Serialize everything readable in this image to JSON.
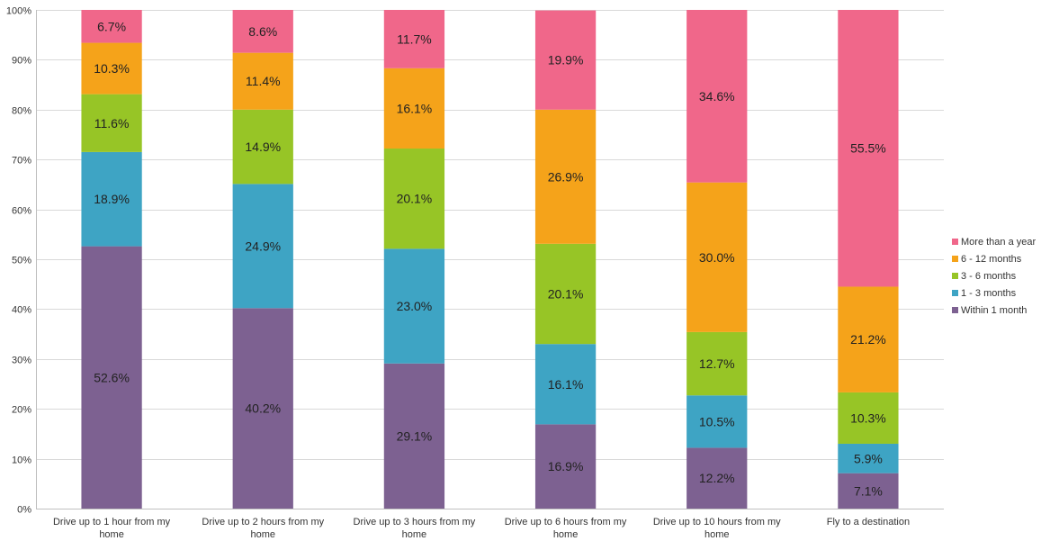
{
  "chart_data": {
    "type": "bar",
    "stacked": true,
    "percent_stacked": true,
    "title": "",
    "xlabel": "",
    "ylabel": "",
    "ylim": [
      0,
      100
    ],
    "yticks": [
      "0%",
      "10%",
      "20%",
      "30%",
      "40%",
      "50%",
      "60%",
      "70%",
      "80%",
      "90%",
      "100%"
    ],
    "grid": true,
    "legend_position": "right",
    "categories": [
      [
        "Drive up to 1 hour from my",
        "home"
      ],
      [
        "Drive up to 2 hours from my",
        "home"
      ],
      [
        "Drive up to 3 hours from my",
        "home"
      ],
      [
        "Drive up to 6 hours from my",
        "home"
      ],
      [
        "Drive up to 10 hours from my",
        "home"
      ],
      [
        "Fly to a destination"
      ]
    ],
    "series": [
      {
        "name": "Within 1 month",
        "color": "#7d6191",
        "values": [
          52.6,
          40.2,
          29.1,
          16.9,
          12.2,
          7.1
        ],
        "labels": [
          "52.6%",
          "40.2%",
          "29.1%",
          "16.9%",
          "12.2%",
          "7.1%"
        ]
      },
      {
        "name": "1 - 3 months",
        "color": "#3ea4c4",
        "values": [
          18.9,
          24.9,
          23.0,
          16.1,
          10.5,
          5.9
        ],
        "labels": [
          "18.9%",
          "24.9%",
          "23.0%",
          "16.1%",
          "10.5%",
          "5.9%"
        ]
      },
      {
        "name": "3 - 6 months",
        "color": "#97c526",
        "values": [
          11.6,
          14.9,
          20.1,
          20.1,
          12.7,
          10.3
        ],
        "labels": [
          "11.6%",
          "14.9%",
          "20.1%",
          "20.1%",
          "12.7%",
          "10.3%"
        ]
      },
      {
        "name": "6 - 12 months",
        "color": "#f5a31a",
        "values": [
          10.3,
          11.4,
          16.1,
          26.9,
          30.0,
          21.2
        ],
        "labels": [
          "10.3%",
          "11.4%",
          "16.1%",
          "26.9%",
          "30.0%",
          "21.2%"
        ]
      },
      {
        "name": "More than a year",
        "color": "#f0678a",
        "values": [
          6.7,
          8.6,
          11.7,
          19.9,
          34.6,
          55.5
        ],
        "labels": [
          "6.7%",
          "8.6%",
          "11.7%",
          "19.9%",
          "34.6%",
          "55.5%"
        ]
      }
    ],
    "legend_order": [
      "More than a year",
      "6 - 12 months",
      "3 - 6 months",
      "1 - 3 months",
      "Within 1 month"
    ]
  }
}
